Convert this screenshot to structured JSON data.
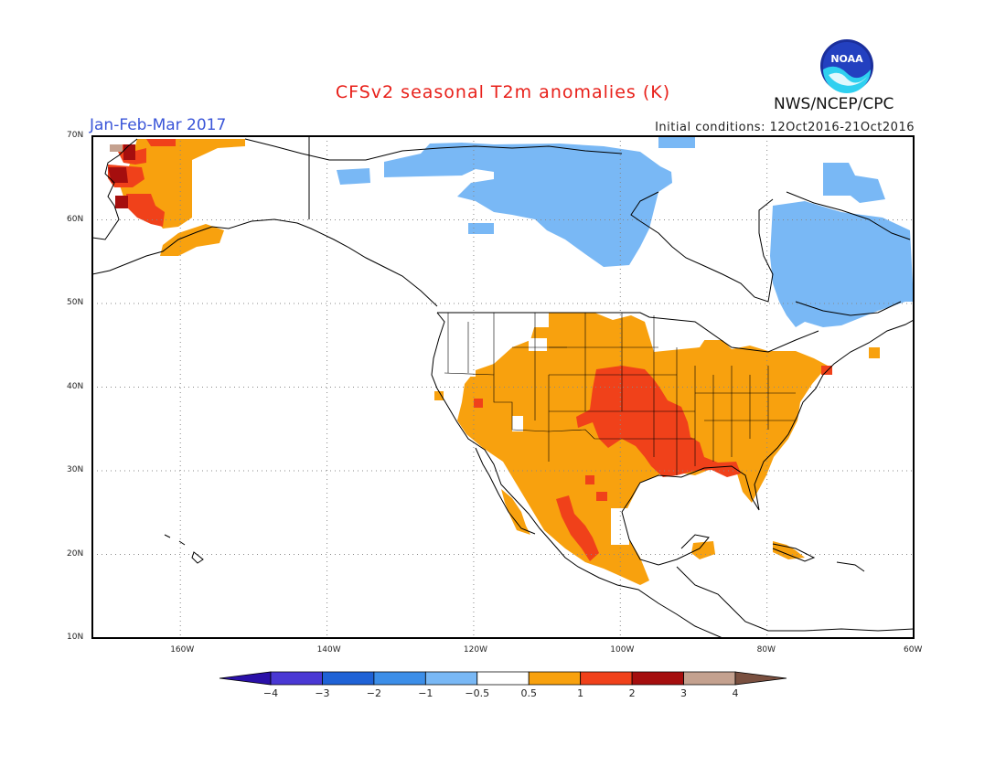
{
  "header": {
    "title": "CFSv2 seasonal T2m anomalies (K)",
    "period": "Jan-Feb-Mar 2017",
    "initial_conditions": "Initial conditions: 12Oct2016-21Oct2016",
    "agency": "NWS/NCEP/CPC",
    "logo_text": "NOAA"
  },
  "map": {
    "lon_range": [
      -172,
      -60
    ],
    "lat_range": [
      10,
      70
    ],
    "lat_labels": [
      "10N",
      "20N",
      "30N",
      "40N",
      "50N",
      "60N",
      "70N"
    ],
    "lon_labels": [
      "160W",
      "140W",
      "120W",
      "100W",
      "80W",
      "60W"
    ],
    "colors": {
      "light_blue": "#79b8f5",
      "orange": "#f8a10e",
      "red": "#f0411a",
      "dark_red": "#a50e0e",
      "brown": "#c4a18f",
      "land_line": "#000000",
      "grid": "#888888"
    }
  },
  "legend": {
    "labels": [
      "-4",
      "-3",
      "-2",
      "-1",
      "-0.5",
      "0.5",
      "1",
      "2",
      "3",
      "4"
    ],
    "colors": [
      "#2a10a8",
      "#4a38d4",
      "#1f62d6",
      "#3c8ee8",
      "#79b8f5",
      "#ffffff",
      "#f8a10e",
      "#f0411a",
      "#a50e0e",
      "#c4a18f",
      "#7a5040"
    ]
  }
}
